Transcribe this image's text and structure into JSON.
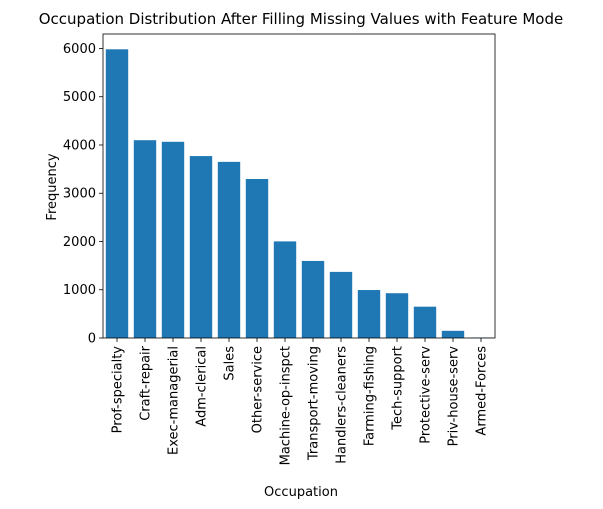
{
  "chart_data": {
    "type": "bar",
    "title": "Occupation Distribution After Filling Missing Values with Feature Mode",
    "xlabel": "Occupation",
    "ylabel": "Frequency",
    "categories": [
      "Prof-specialty",
      "Craft-repair",
      "Exec-managerial",
      "Adm-clerical",
      "Sales",
      "Other-service",
      "Machine-op-inspct",
      "Transport-moving",
      "Handlers-cleaners",
      "Farming-fishing",
      "Tech-support",
      "Protective-serv",
      "Priv-house-serv",
      "Armed-Forces"
    ],
    "values": [
      5983,
      4099,
      4066,
      3770,
      3650,
      3295,
      2002,
      1597,
      1370,
      994,
      928,
      649,
      149,
      9
    ],
    "ylim": [
      0,
      6300
    ],
    "yticks": [
      0,
      1000,
      2000,
      3000,
      4000,
      5000,
      6000
    ],
    "bar_color": "#1f77b4",
    "grid": false,
    "legend": "none"
  }
}
